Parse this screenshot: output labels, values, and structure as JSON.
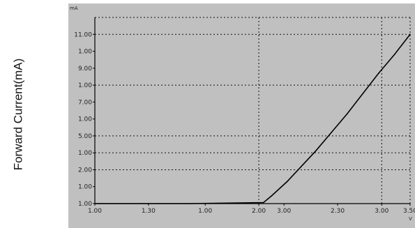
{
  "chart_data": {
    "type": "line",
    "title": "",
    "xlabel": "",
    "ylabel": "Forward Current(mA)",
    "x_unit": "V",
    "y_unit": "mA",
    "background_color": "#c0c0c0",
    "plot_color": "#000000",
    "grid": "dotted",
    "xlim": [
      0,
      10
    ],
    "ylim": [
      0,
      11
    ],
    "x_tick_labels": [
      "1.00",
      "1.30",
      "1.00",
      "2.00",
      "3.00",
      "2.30",
      "3.00",
      "3.50"
    ],
    "x_tick_values": [
      0,
      1.7,
      3.5,
      5.2,
      6.0,
      7.7,
      9.1,
      10.0
    ],
    "y_tick_labels": [
      "1.00",
      "1.00",
      "2.00",
      "1.00",
      "5.00",
      "1.00",
      "7.00",
      "1.00",
      "9.00",
      "1.00",
      "11.00"
    ],
    "y_tick_values": [
      0,
      1,
      2,
      3,
      4,
      5,
      6,
      7,
      8,
      9,
      10
    ],
    "x_grid_values": [
      5.2,
      9.1
    ],
    "y_grid_values": [
      2,
      3,
      4,
      7,
      10,
      11
    ],
    "series": [
      {
        "x": [
          0,
          3.0,
          5.35,
          5.6,
          6.1,
          6.6,
          7.0,
          7.5,
          8.0,
          8.5,
          9.0,
          9.5,
          10.0
        ],
        "values": [
          0,
          0,
          0.06,
          0.45,
          1.3,
          2.3,
          3.1,
          4.2,
          5.3,
          6.5,
          7.7,
          8.8,
          10.0
        ]
      }
    ]
  }
}
